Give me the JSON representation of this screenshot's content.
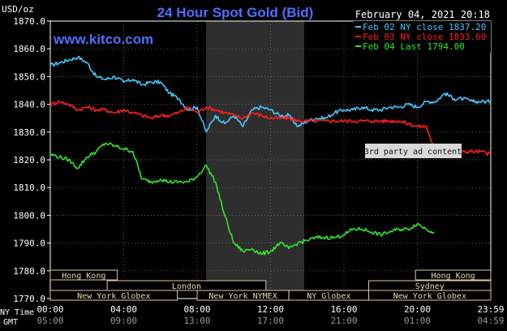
{
  "chart_data": {
    "type": "line",
    "title": "24 Hour Spot Gold (Bid)",
    "date_label": "February 04, 2021 20:18",
    "watermark": "www.kitco.com",
    "ylabel": "USD/oz",
    "ylim": [
      1770,
      1870
    ],
    "y_ticks": [
      "1870.0",
      "1860.0",
      "1850.0",
      "1840.0",
      "1830.0",
      "1820.0",
      "1810.0",
      "1800.0",
      "1790.0",
      "1780.0",
      "1770.0"
    ],
    "x_ticks_ny": [
      "00:00",
      "04:00",
      "08:00",
      "12:00",
      "16:00",
      "20:00",
      "23:59"
    ],
    "x_ticks_gmt": [
      "05:00",
      "09:00",
      "13:00",
      "17:00",
      "21:00",
      "01:00",
      "04:59"
    ],
    "x_row_labels": [
      "NY Time",
      "GMT"
    ],
    "grid": true,
    "legend_position": "top-right",
    "colors": {
      "background": "#000000",
      "plot": "#000000",
      "session_band": "#2e2e2e",
      "grid": "#808080",
      "axis": "#ffffff",
      "title": "#4f6fff",
      "market_box_fill": "#000000",
      "market_box_border": "#d7c9a0",
      "market_text": "#e9dcb0"
    },
    "ad_label": "3rd party ad content",
    "markets": [
      {
        "label": "Hong Kong",
        "row": 0
      },
      {
        "label": "Hong Kong",
        "row": 0
      },
      {
        "label": "London",
        "row": 1
      },
      {
        "label": "Sydney",
        "row": 1
      },
      {
        "label": "New York Globex",
        "row": 2
      },
      {
        "label": "New York NYMEX",
        "row": 2
      },
      {
        "label": "NY Globex",
        "row": 2
      },
      {
        "label": "New York Globex",
        "row": 2
      }
    ],
    "series": [
      {
        "name": "Feb 02 NY close 1837.20",
        "color": "#45c8ff",
        "x": [
          0,
          0.5,
          1,
          1.5,
          2,
          2.5,
          3,
          3.5,
          4,
          4.5,
          5,
          5.5,
          6,
          6.5,
          7,
          7.5,
          8,
          8.5,
          9,
          9.5,
          10,
          10.5,
          11,
          11.5,
          12,
          12.5,
          13,
          13.5,
          14,
          14.5,
          15,
          15.5,
          16,
          16.5,
          17,
          17.5,
          18,
          18.5,
          19,
          19.5,
          20,
          20.5,
          21,
          21.5,
          22,
          22.5,
          23,
          23.5,
          24
        ],
        "values": [
          1854,
          1855,
          1856,
          1857,
          1855,
          1850,
          1849,
          1850,
          1848,
          1849,
          1847,
          1848,
          1848,
          1844,
          1842,
          1838,
          1839,
          1830,
          1836,
          1833,
          1836,
          1832,
          1838,
          1839,
          1838,
          1836,
          1836,
          1832,
          1834,
          1835,
          1835,
          1837,
          1838,
          1838,
          1839,
          1838,
          1838,
          1839,
          1839,
          1840,
          1839,
          1841,
          1841,
          1844,
          1842,
          1842,
          1841,
          1841,
          1841
        ]
      },
      {
        "name": "Feb 03 NY close 1833.60",
        "color": "#ff1e1e",
        "x": [
          0,
          0.5,
          1,
          1.5,
          2,
          2.5,
          3,
          3.5,
          4,
          4.5,
          5,
          5.5,
          6,
          6.5,
          7,
          7.5,
          8,
          8.5,
          9,
          9.5,
          10,
          10.5,
          11,
          11.5,
          12,
          12.5,
          13,
          13.5,
          14,
          14.5,
          15,
          15.5,
          16,
          16.5,
          17,
          17.5,
          18,
          18.5,
          19,
          19.5,
          20,
          20.5,
          21,
          21.5,
          22,
          22.5,
          23,
          23.5,
          24
        ],
        "values": [
          1840,
          1841,
          1840,
          1838,
          1839,
          1838,
          1838,
          1837,
          1838,
          1837,
          1836,
          1835,
          1836,
          1836,
          1837,
          1839,
          1837,
          1839,
          1838,
          1837,
          1836,
          1835,
          1837,
          1836,
          1835,
          1835,
          1835,
          1834,
          1834,
          1834,
          1834,
          1834,
          1834,
          1834,
          1834,
          1834,
          1834,
          1834,
          1834,
          1833,
          1832,
          1832,
          1822,
          1822,
          1822,
          1823,
          1823,
          1823,
          1822
        ]
      },
      {
        "name": "Feb 04 Last 1794.00",
        "color": "#32e62a",
        "x": [
          0,
          0.5,
          1,
          1.5,
          2,
          2.5,
          3,
          3.5,
          4,
          4.5,
          5,
          5.5,
          6,
          6.5,
          7,
          7.5,
          8,
          8.5,
          9,
          9.5,
          10,
          10.5,
          11,
          11.5,
          12,
          12.5,
          13,
          13.5,
          14,
          14.5,
          15,
          15.5,
          16,
          16.5,
          17,
          17.5,
          18,
          18.5,
          19,
          19.5,
          20,
          20.5,
          20.9
        ],
        "values": [
          1822,
          1821,
          1820,
          1817,
          1821,
          1823,
          1826,
          1825,
          1824,
          1823,
          1813,
          1812,
          1813,
          1812,
          1812,
          1812,
          1814,
          1818,
          1812,
          1800,
          1790,
          1787,
          1788,
          1786,
          1787,
          1790,
          1788,
          1790,
          1791,
          1792,
          1792,
          1792,
          1793,
          1795,
          1795,
          1794,
          1793,
          1794,
          1795,
          1795,
          1797,
          1795,
          1794
        ]
      }
    ]
  }
}
